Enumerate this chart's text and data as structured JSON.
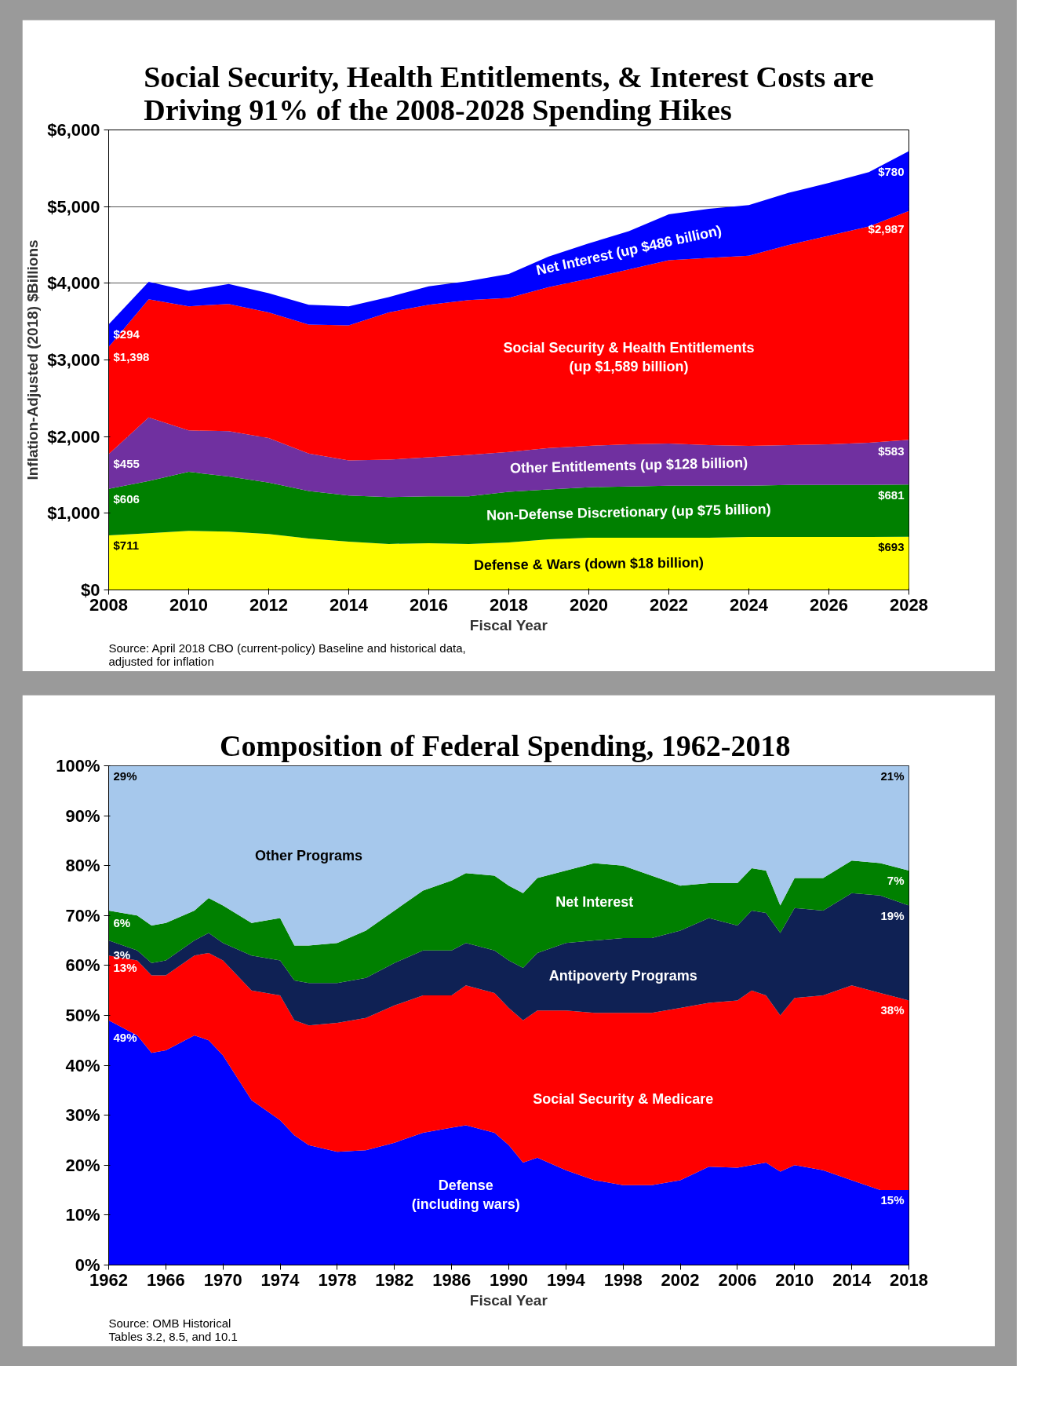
{
  "chart_data": [
    {
      "type": "area",
      "stacked": true,
      "title": "Social Security, Health Entitlements, & Interest Costs are\nDriving 91% of the 2008-2028 Spending Hikes",
      "xlabel": "Fiscal Year",
      "ylabel": "Inflation-Adjusted (2018) $Billions",
      "x": [
        2008,
        2009,
        2010,
        2011,
        2012,
        2013,
        2014,
        2015,
        2016,
        2017,
        2018,
        2019,
        2020,
        2021,
        2022,
        2023,
        2024,
        2025,
        2026,
        2027,
        2028
      ],
      "xlim": [
        2008,
        2028
      ],
      "xticks": [
        2008,
        2010,
        2012,
        2014,
        2016,
        2018,
        2020,
        2022,
        2024,
        2026,
        2028
      ],
      "ylim": [
        0,
        6000
      ],
      "yticks": [
        {
          "value": 0,
          "label": "$0"
        },
        {
          "value": 1000,
          "label": "$1,000"
        },
        {
          "value": 2000,
          "label": "$2,000"
        },
        {
          "value": 3000,
          "label": "$3,000"
        },
        {
          "value": 4000,
          "label": "$4,000"
        },
        {
          "value": 5000,
          "label": "$5,000"
        },
        {
          "value": 6000,
          "label": "$6,000"
        }
      ],
      "grid": "y",
      "series": [
        {
          "name": "Defense & Wars (down $18 billion)",
          "color": "#ffff00",
          "values": [
            711,
            740,
            770,
            760,
            730,
            670,
            630,
            600,
            610,
            600,
            620,
            660,
            680,
            680,
            680,
            680,
            690,
            690,
            690,
            690,
            693
          ],
          "value_labels": [
            "$711",
            null,
            null,
            null,
            null,
            null,
            null,
            null,
            null,
            null,
            null,
            null,
            null,
            null,
            null,
            null,
            null,
            null,
            null,
            null,
            "$693"
          ]
        },
        {
          "name": "Non-Defense Discretionary (up $75 billion)",
          "color": "#008000",
          "values": [
            606,
            680,
            770,
            720,
            670,
            620,
            600,
            610,
            610,
            620,
            660,
            650,
            660,
            670,
            680,
            680,
            670,
            680,
            680,
            680,
            681
          ],
          "value_labels": [
            "$606",
            null,
            null,
            null,
            null,
            null,
            null,
            null,
            null,
            null,
            null,
            null,
            null,
            null,
            null,
            null,
            null,
            null,
            null,
            null,
            "$681"
          ]
        },
        {
          "name": "Other Entitlements (up $128 billion)",
          "color": "#7030a0",
          "values": [
            455,
            830,
            540,
            590,
            580,
            490,
            460,
            490,
            510,
            540,
            520,
            540,
            540,
            550,
            550,
            530,
            520,
            520,
            530,
            550,
            583
          ],
          "value_labels": [
            "$455",
            null,
            null,
            null,
            null,
            null,
            null,
            null,
            null,
            null,
            null,
            null,
            null,
            null,
            null,
            null,
            null,
            null,
            null,
            null,
            "$583"
          ]
        },
        {
          "name": "Social Security & Health Entitlements\n(up $1,589 billion)",
          "color": "#ff0000",
          "values": [
            1398,
            1540,
            1620,
            1660,
            1640,
            1680,
            1760,
            1920,
            1990,
            2020,
            2010,
            2100,
            2180,
            2280,
            2390,
            2440,
            2480,
            2610,
            2720,
            2820,
            2987
          ],
          "value_labels": [
            "$1,398",
            null,
            null,
            null,
            null,
            null,
            null,
            null,
            null,
            null,
            null,
            null,
            null,
            null,
            null,
            null,
            null,
            null,
            null,
            null,
            "$2,987"
          ]
        },
        {
          "name": "Net Interest (up $486 billion)",
          "color": "#0000ff",
          "values": [
            294,
            230,
            200,
            260,
            250,
            260,
            250,
            200,
            240,
            250,
            310,
            400,
            460,
            500,
            600,
            640,
            660,
            680,
            690,
            710,
            780
          ],
          "value_labels": [
            "$294",
            null,
            null,
            null,
            null,
            null,
            null,
            null,
            null,
            null,
            null,
            null,
            null,
            null,
            null,
            null,
            null,
            null,
            null,
            null,
            "$780"
          ]
        }
      ],
      "annotations": [
        "Source: April 2018 CBO (current-policy) Baseline and historical data,\nadjusted for inflation"
      ]
    },
    {
      "type": "area",
      "stacked": true,
      "title": "Composition of  Federal Spending, 1962-2018",
      "xlabel": "Fiscal Year",
      "x": [
        1962,
        1964,
        1965,
        1966,
        1968,
        1969,
        1970,
        1972,
        1974,
        1975,
        1976,
        1978,
        1980,
        1982,
        1984,
        1986,
        1987,
        1989,
        1990,
        1991,
        1992,
        1994,
        1996,
        1998,
        2000,
        2002,
        2004,
        2006,
        2007,
        2008,
        2009,
        2010,
        2012,
        2014,
        2016,
        2018
      ],
      "xlim": [
        1962,
        2018
      ],
      "xticks": [
        1962,
        1966,
        1970,
        1974,
        1978,
        1982,
        1986,
        1990,
        1994,
        1998,
        2002,
        2006,
        2010,
        2014,
        2018
      ],
      "ylim": [
        0,
        100
      ],
      "yticks": [
        {
          "value": 0,
          "label": "0%"
        },
        {
          "value": 10,
          "label": "10%"
        },
        {
          "value": 20,
          "label": "20%"
        },
        {
          "value": 30,
          "label": "30%"
        },
        {
          "value": 40,
          "label": "40%"
        },
        {
          "value": 50,
          "label": "50%"
        },
        {
          "value": 60,
          "label": "60%"
        },
        {
          "value": 70,
          "label": "70%"
        },
        {
          "value": 80,
          "label": "80%"
        },
        {
          "value": 90,
          "label": "90%"
        },
        {
          "value": 100,
          "label": "100%"
        }
      ],
      "series": [
        {
          "name": "Defense\n(including wars)",
          "color": "#0000ff",
          "values": [
            49,
            46,
            42.5,
            43,
            46,
            45,
            42,
            33,
            29,
            26,
            24,
            22.7,
            23,
            24.5,
            26.5,
            27.5,
            28,
            26.5,
            24,
            20.5,
            21.5,
            19,
            17,
            16,
            16,
            17,
            19.7,
            19.5,
            20,
            20.5,
            18.7,
            20,
            19,
            17,
            15,
            15
          ],
          "value_labels": [
            "49%",
            null,
            null,
            null,
            null,
            null,
            null,
            null,
            null,
            null,
            null,
            null,
            null,
            null,
            null,
            null,
            null,
            null,
            null,
            null,
            null,
            null,
            null,
            null,
            null,
            null,
            null,
            null,
            null,
            null,
            null,
            null,
            null,
            null,
            null,
            "15%"
          ]
        },
        {
          "name": "Social Security & Medicare",
          "color": "#ff0000",
          "values": [
            13,
            15,
            15.5,
            15,
            16,
            17.5,
            19,
            22,
            25,
            23,
            24,
            25.8,
            26.5,
            27.5,
            27.5,
            26.5,
            28,
            28,
            27.5,
            28.5,
            29.5,
            32,
            33.5,
            34.5,
            34.5,
            34.5,
            32.8,
            33.5,
            35,
            33.5,
            31.3,
            33.5,
            35,
            39,
            39.5,
            38
          ],
          "value_labels": [
            "13%",
            null,
            null,
            null,
            null,
            null,
            null,
            null,
            null,
            null,
            null,
            null,
            null,
            null,
            null,
            null,
            null,
            null,
            null,
            null,
            null,
            null,
            null,
            null,
            null,
            null,
            null,
            null,
            null,
            null,
            null,
            null,
            null,
            null,
            null,
            "38%"
          ]
        },
        {
          "name": "Antipoverty Programs",
          "color": "#0f2154",
          "values": [
            3,
            2,
            2.5,
            3,
            3,
            4,
            3.5,
            7,
            7,
            8,
            8.5,
            8,
            8,
            8.5,
            9,
            9,
            8.5,
            8.5,
            9.5,
            10.5,
            11.5,
            13.5,
            14.5,
            15,
            15,
            15.5,
            17,
            15,
            16,
            16.5,
            16.5,
            18,
            17,
            18.5,
            19.5,
            19
          ],
          "value_labels": [
            "3%",
            null,
            null,
            null,
            null,
            null,
            null,
            null,
            null,
            null,
            null,
            null,
            null,
            null,
            null,
            null,
            null,
            null,
            null,
            null,
            null,
            null,
            null,
            null,
            null,
            null,
            null,
            null,
            null,
            null,
            null,
            null,
            null,
            null,
            null,
            "19%"
          ]
        },
        {
          "name": "Net Interest",
          "color": "#008000",
          "values": [
            6,
            7,
            7.5,
            7.5,
            6,
            7,
            7.5,
            6.5,
            8.5,
            7,
            7.5,
            8,
            9.5,
            10.5,
            12,
            14,
            14,
            15,
            15,
            15,
            15,
            14.5,
            15.5,
            14.5,
            12.5,
            9,
            7,
            8.5,
            8.5,
            8.5,
            5.5,
            6,
            6.5,
            6.5,
            6.5,
            7
          ],
          "value_labels": [
            "6%",
            null,
            null,
            null,
            null,
            null,
            null,
            null,
            null,
            null,
            null,
            null,
            null,
            null,
            null,
            null,
            null,
            null,
            null,
            null,
            null,
            null,
            null,
            null,
            null,
            null,
            null,
            null,
            null,
            null,
            null,
            null,
            null,
            null,
            null,
            "7%"
          ]
        },
        {
          "name": "Other Programs",
          "color": "#a6c8ec",
          "values": [
            29,
            30,
            32,
            31.5,
            29,
            26.5,
            28,
            31.5,
            30.5,
            36,
            36,
            35.5,
            33,
            29,
            25,
            23,
            21.5,
            22,
            24,
            25.5,
            22.5,
            21,
            19.5,
            20,
            22,
            24,
            23.5,
            23.5,
            20.5,
            21,
            28,
            22.5,
            22.5,
            19,
            19.5,
            21
          ],
          "value_labels": [
            "29%",
            null,
            null,
            null,
            null,
            null,
            null,
            null,
            null,
            null,
            null,
            null,
            null,
            null,
            null,
            null,
            null,
            null,
            null,
            null,
            null,
            null,
            null,
            null,
            null,
            null,
            null,
            null,
            null,
            null,
            null,
            null,
            null,
            null,
            null,
            "21%"
          ]
        }
      ],
      "annotations": [
        "Source: OMB Historical\nTables 3.2, 8.5, and 10.1"
      ]
    }
  ]
}
